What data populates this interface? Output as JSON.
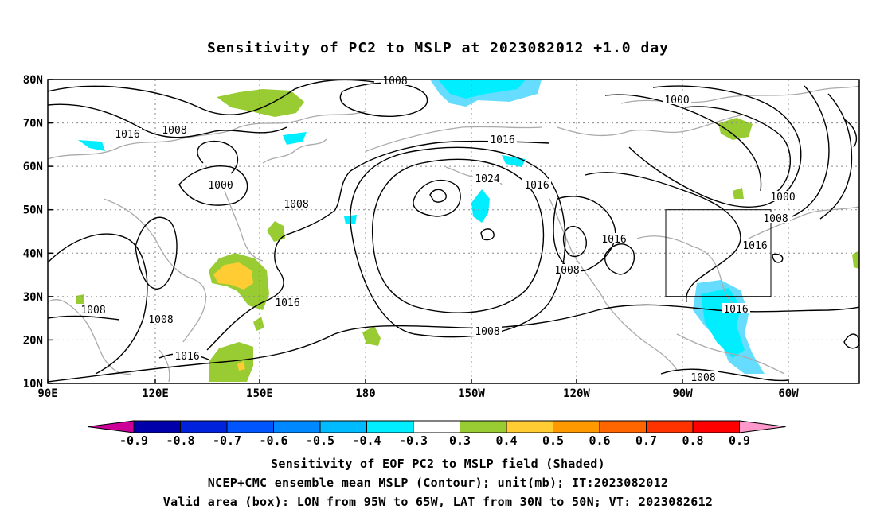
{
  "title": "Sensitivity of PC2 to MSLP at 2023082012 +1.0 day",
  "map": {
    "lon_labels": [
      "90E",
      "120E",
      "150E",
      "180",
      "150W",
      "120W",
      "90W",
      "60W"
    ],
    "lat_labels": [
      "80N",
      "70N",
      "60N",
      "50N",
      "40N",
      "30N",
      "20N",
      "10N"
    ],
    "valid_box": {
      "lon_from": "95W",
      "lon_to": "65W",
      "lat_from": "30N",
      "lat_to": "50N"
    },
    "contour_labels": [
      "1008",
      "1016",
      "1008",
      "1000",
      "1008",
      "1016",
      "1024",
      "1016",
      "1016",
      "1008",
      "1016",
      "1000",
      "1000",
      "1008",
      "1016",
      "1016",
      "1008",
      "1008",
      "1008",
      "1016",
      "1008"
    ]
  },
  "colorbar": {
    "ticks": [
      "-0.9",
      "-0.8",
      "-0.7",
      "-0.6",
      "-0.5",
      "-0.4",
      "-0.3",
      "0.3",
      "0.4",
      "0.5",
      "0.6",
      "0.7",
      "0.8",
      "0.9"
    ],
    "left_arrow_color": "#cc0099",
    "right_arrow_color": "#ff99cc",
    "colors": [
      "#0000aa",
      "#0022dd",
      "#0055ff",
      "#0088ff",
      "#00bbff",
      "#00eeff",
      "#ffffff",
      "#99cc33",
      "#ffcc33",
      "#ff9900",
      "#ff6600",
      "#ff3300",
      "#ff0000"
    ]
  },
  "captions": {
    "line1": "Sensitivity of EOF PC2 to MSLP field (Shaded)",
    "line2": "NCEP+CMC ensemble mean MSLP (Contour); unit(mb); IT:2023082012",
    "line3": "Valid area (box): LON from 95W to 65W, LAT from 30N to 50N; VT: 2023082612"
  }
}
